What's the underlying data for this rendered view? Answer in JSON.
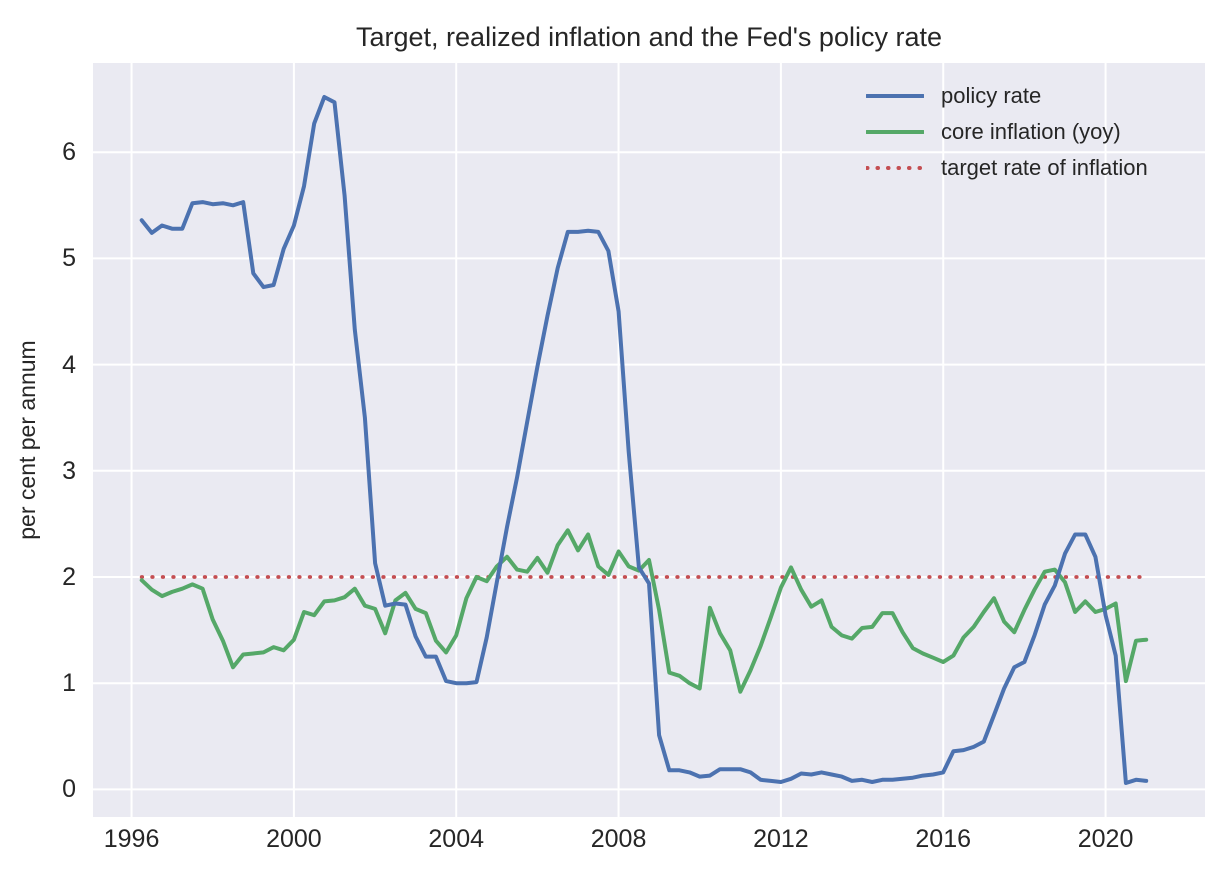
{
  "chart_data": {
    "type": "line",
    "title": "Target, realized inflation and the Fed's policy rate",
    "ylabel": "per cent per annum",
    "xlabel": "",
    "xlim": [
      1995.05,
      2022.45
    ],
    "ylim": [
      -0.26,
      6.84
    ],
    "xticks": [
      1996,
      2000,
      2004,
      2008,
      2012,
      2016,
      2020
    ],
    "yticks": [
      0,
      1,
      2,
      3,
      4,
      5,
      6
    ],
    "grid": true,
    "legend_position": "upper right",
    "plot_background": "#eaeaf2",
    "grid_color": "#ffffff",
    "text_color": "#262626",
    "x": [
      1996.25,
      1996.5,
      1996.75,
      1997.0,
      1997.25,
      1997.5,
      1997.75,
      1998.0,
      1998.25,
      1998.5,
      1998.75,
      1999.0,
      1999.25,
      1999.5,
      1999.75,
      2000.0,
      2000.25,
      2000.5,
      2000.75,
      2001.0,
      2001.25,
      2001.5,
      2001.75,
      2002.0,
      2002.25,
      2002.5,
      2002.75,
      2003.0,
      2003.25,
      2003.5,
      2003.75,
      2004.0,
      2004.25,
      2004.5,
      2004.75,
      2005.0,
      2005.25,
      2005.5,
      2005.75,
      2006.0,
      2006.25,
      2006.5,
      2006.75,
      2007.0,
      2007.25,
      2007.5,
      2007.75,
      2008.0,
      2008.25,
      2008.5,
      2008.75,
      2009.0,
      2009.25,
      2009.5,
      2009.75,
      2010.0,
      2010.25,
      2010.5,
      2010.75,
      2011.0,
      2011.25,
      2011.5,
      2011.75,
      2012.0,
      2012.25,
      2012.5,
      2012.75,
      2013.0,
      2013.25,
      2013.5,
      2013.75,
      2014.0,
      2014.25,
      2014.5,
      2014.75,
      2015.0,
      2015.25,
      2015.5,
      2015.75,
      2016.0,
      2016.25,
      2016.5,
      2016.75,
      2017.0,
      2017.25,
      2017.5,
      2017.75,
      2018.0,
      2018.25,
      2018.5,
      2018.75,
      2019.0,
      2019.25,
      2019.5,
      2019.75,
      2020.0,
      2020.25,
      2020.5,
      2020.75,
      2021.0
    ],
    "series": [
      {
        "name": "policy rate",
        "color": "#4c72b0",
        "style": "solid",
        "values": [
          5.36,
          5.24,
          5.31,
          5.28,
          5.28,
          5.52,
          5.53,
          5.51,
          5.52,
          5.5,
          5.53,
          4.86,
          4.73,
          4.75,
          5.09,
          5.31,
          5.68,
          6.27,
          6.52,
          6.47,
          5.59,
          4.33,
          3.5,
          2.13,
          1.73,
          1.75,
          1.74,
          1.44,
          1.25,
          1.25,
          1.02,
          1.0,
          1.0,
          1.01,
          1.43,
          1.95,
          2.47,
          2.94,
          3.46,
          3.98,
          4.46,
          4.91,
          5.25,
          5.25,
          5.26,
          5.25,
          5.07,
          4.5,
          3.18,
          2.09,
          1.94,
          0.51,
          0.18,
          0.18,
          0.16,
          0.12,
          0.13,
          0.19,
          0.19,
          0.19,
          0.16,
          0.09,
          0.08,
          0.07,
          0.1,
          0.15,
          0.14,
          0.16,
          0.14,
          0.12,
          0.08,
          0.09,
          0.07,
          0.09,
          0.09,
          0.1,
          0.11,
          0.13,
          0.14,
          0.16,
          0.36,
          0.37,
          0.4,
          0.45,
          0.7,
          0.95,
          1.15,
          1.2,
          1.45,
          1.74,
          1.92,
          2.22,
          2.4,
          2.4,
          2.19,
          1.64,
          1.26,
          0.06,
          0.09,
          0.08
        ]
      },
      {
        "name": "core inflation (yoy)",
        "color": "#55a868",
        "style": "solid",
        "values": [
          1.97,
          1.88,
          1.82,
          1.86,
          1.89,
          1.93,
          1.89,
          1.6,
          1.4,
          1.15,
          1.27,
          1.28,
          1.29,
          1.34,
          1.31,
          1.41,
          1.67,
          1.64,
          1.77,
          1.78,
          1.81,
          1.89,
          1.73,
          1.7,
          1.47,
          1.78,
          1.85,
          1.7,
          1.66,
          1.4,
          1.29,
          1.45,
          1.8,
          2.0,
          1.96,
          2.1,
          2.19,
          2.07,
          2.05,
          2.18,
          2.04,
          2.3,
          2.44,
          2.25,
          2.4,
          2.1,
          2.02,
          2.24,
          2.1,
          2.06,
          2.16,
          1.69,
          1.1,
          1.07,
          1.0,
          0.95,
          1.71,
          1.47,
          1.31,
          0.92,
          1.12,
          1.35,
          1.62,
          1.9,
          2.09,
          1.88,
          1.72,
          1.78,
          1.53,
          1.45,
          1.42,
          1.52,
          1.53,
          1.66,
          1.66,
          1.48,
          1.33,
          1.28,
          1.24,
          1.2,
          1.26,
          1.43,
          1.53,
          1.67,
          1.8,
          1.58,
          1.48,
          1.69,
          1.88,
          2.05,
          2.07,
          1.95,
          1.67,
          1.77,
          1.67,
          1.7,
          1.75,
          1.02,
          1.4,
          1.41
        ]
      },
      {
        "name": "target rate of inflation",
        "color": "#c44e52",
        "style": "dotted",
        "constant": 2.0
      }
    ]
  }
}
